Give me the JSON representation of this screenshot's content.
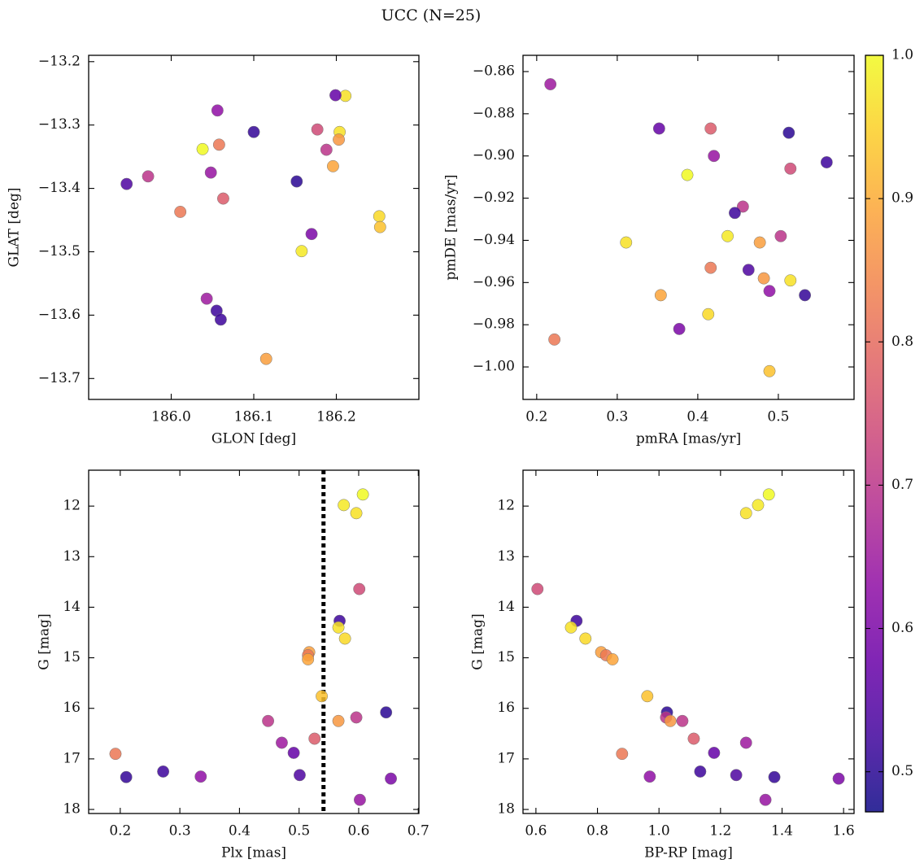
{
  "title": "UCC (N=25)",
  "colorbar": {
    "cmap": "plasma",
    "clim": [
      0.472,
      1.0
    ],
    "ticks": [
      {
        "value": 0.5,
        "label": "0.5"
      },
      {
        "value": 0.6,
        "label": "0.6"
      },
      {
        "value": 0.7,
        "label": "0.7"
      },
      {
        "value": 0.8,
        "label": "0.8"
      },
      {
        "value": 0.9,
        "label": "0.9"
      },
      {
        "value": 1.0,
        "label": "1.0"
      }
    ],
    "values": [
      1.0,
      0.98,
      0.97,
      0.74,
      0.52,
      0.97,
      0.96,
      0.88,
      0.82,
      0.89,
      0.93,
      0.5,
      0.7,
      0.87,
      0.7,
      0.77,
      0.65,
      0.57,
      0.82,
      0.63,
      0.52,
      0.54,
      0.51,
      0.6,
      0.64
    ]
  },
  "chart_data": [
    {
      "type": "scatter",
      "xlabel": "GLON [deg]",
      "ylabel": "GLAT [deg]",
      "xlim": [
        185.9,
        186.3
      ],
      "ylim": [
        -13.733,
        -13.19
      ],
      "xticks": [
        {
          "value": 186.0,
          "label": "186.0"
        },
        186.1,
        186.2
      ],
      "yticks": [
        {
          "value": -13.2,
          "label": "−13.2"
        },
        {
          "value": -13.3,
          "label": "−13.3"
        },
        {
          "value": -13.4,
          "label": "−13.4"
        },
        {
          "value": -13.5,
          "label": "−13.5"
        },
        {
          "value": -13.6,
          "label": "−13.6"
        },
        {
          "value": -13.7,
          "label": "−13.7"
        }
      ],
      "x": [
        186.038,
        186.158,
        186.204,
        186.177,
        186.055,
        186.211,
        186.252,
        186.115,
        186.011,
        186.196,
        186.253,
        186.152,
        185.972,
        186.203,
        186.188,
        186.063,
        186.043,
        186.199,
        186.058,
        186.056,
        186.06,
        185.946,
        186.1,
        186.17,
        186.048
      ],
      "y": [
        -13.338,
        -13.499,
        -13.311,
        -13.307,
        -13.593,
        -13.254,
        -13.444,
        -13.669,
        -13.437,
        -13.365,
        -13.461,
        -13.389,
        -13.381,
        -13.323,
        -13.339,
        -13.416,
        -13.574,
        -13.253,
        -13.331,
        -13.277,
        -13.607,
        -13.393,
        -13.311,
        -13.472,
        -13.375
      ]
    },
    {
      "type": "scatter",
      "xlabel": "pmRA [mas/yr]",
      "ylabel": "pmDE [mas/yr]",
      "xlim": [
        0.183,
        0.594
      ],
      "ylim": [
        -1.0154,
        -0.8523
      ],
      "xticks": [
        0.2,
        0.3,
        0.4,
        0.5
      ],
      "yticks": [
        {
          "value": -0.86,
          "label": "−0.86"
        },
        {
          "value": -0.88,
          "label": "−0.88"
        },
        {
          "value": -0.9,
          "label": "−0.90"
        },
        {
          "value": -0.92,
          "label": "−0.92"
        },
        {
          "value": -0.94,
          "label": "−0.94"
        },
        {
          "value": -0.96,
          "label": "−0.96"
        },
        {
          "value": -0.98,
          "label": "−0.98"
        },
        {
          "value": -1.0,
          "label": "−1.00"
        }
      ],
      "x": [
        0.387,
        0.437,
        0.311,
        0.515,
        0.56,
        0.515,
        0.413,
        0.477,
        0.416,
        0.354,
        0.489,
        0.513,
        0.456,
        0.482,
        0.503,
        0.416,
        0.217,
        0.352,
        0.222,
        0.489,
        0.446,
        0.463,
        0.533,
        0.377,
        0.42
      ],
      "y": [
        -0.909,
        -0.938,
        -0.941,
        -0.906,
        -0.903,
        -0.959,
        -0.975,
        -0.941,
        -0.953,
        -0.966,
        -1.002,
        -0.889,
        -0.924,
        -0.958,
        -0.938,
        -0.887,
        -0.866,
        -0.887,
        -0.987,
        -0.964,
        -0.927,
        -0.954,
        -0.966,
        -0.982,
        -0.9
      ]
    },
    {
      "type": "scatter",
      "xlabel": "Plx [mas]",
      "ylabel": "G [mag]",
      "xlim": [
        0.147,
        0.701
      ],
      "ylim": [
        18.08,
        11.29
      ],
      "xticks": [
        0.2,
        0.3,
        0.4,
        0.5,
        0.6,
        0.7
      ],
      "yticks": [
        12,
        13,
        14,
        15,
        16,
        17,
        18
      ],
      "vline": 0.541,
      "x": [
        0.607,
        0.575,
        0.596,
        0.601,
        0.568,
        0.566,
        0.577,
        0.517,
        0.515,
        0.515,
        0.538,
        0.646,
        0.596,
        0.566,
        0.448,
        0.526,
        0.471,
        0.491,
        0.192,
        0.335,
        0.272,
        0.501,
        0.21,
        0.654,
        0.602
      ],
      "y": [
        11.77,
        11.98,
        12.14,
        13.64,
        14.27,
        14.4,
        14.62,
        14.89,
        14.95,
        15.03,
        15.76,
        16.08,
        16.18,
        16.25,
        16.25,
        16.6,
        16.68,
        16.88,
        16.9,
        17.35,
        17.25,
        17.32,
        17.36,
        17.39,
        17.81
      ]
    },
    {
      "type": "scatter",
      "xlabel": "BP-RP [mag]",
      "ylabel": "G [mag]",
      "xlim": [
        0.558,
        1.634
      ],
      "ylim": [
        18.08,
        11.29
      ],
      "xticks": [
        0.6,
        0.8,
        {
          "value": 1.0,
          "label": "1.0"
        },
        1.2,
        1.4,
        1.6
      ],
      "yticks": [
        12,
        13,
        14,
        15,
        16,
        17,
        18
      ],
      "x": [
        1.357,
        1.322,
        1.283,
        0.605,
        0.732,
        0.714,
        0.761,
        0.812,
        0.828,
        0.849,
        0.962,
        1.026,
        1.023,
        1.037,
        1.076,
        1.113,
        1.283,
        1.179,
        0.88,
        0.97,
        1.134,
        1.251,
        1.375,
        1.584,
        1.346
      ],
      "y": [
        11.77,
        11.98,
        12.14,
        13.64,
        14.27,
        14.4,
        14.62,
        14.89,
        14.95,
        15.03,
        15.76,
        16.08,
        16.18,
        16.25,
        16.25,
        16.6,
        16.68,
        16.88,
        16.9,
        17.35,
        17.25,
        17.32,
        17.36,
        17.39,
        17.81
      ]
    }
  ]
}
